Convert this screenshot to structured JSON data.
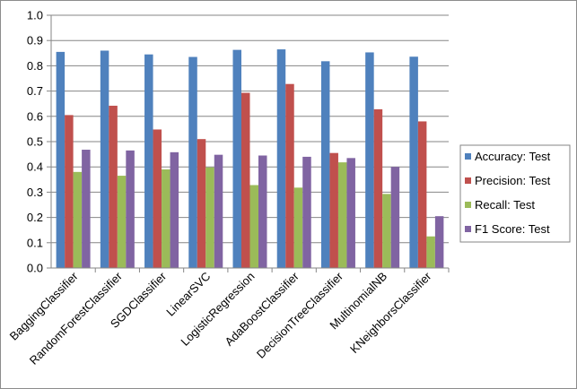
{
  "chart_data": {
    "type": "bar",
    "title": "",
    "xlabel": "",
    "ylabel": "",
    "ylim": [
      0,
      1
    ],
    "yticks": [
      "0.0",
      "0.1",
      "0.2",
      "0.3",
      "0.4",
      "0.5",
      "0.6",
      "0.7",
      "0.8",
      "0.9",
      "1.0"
    ],
    "grid": true,
    "legend_position": "right",
    "categories": [
      "BaggingClassifier",
      "RandomForestClassifier",
      "SGDClassifier",
      "LinearSVC",
      "LogisticRegression",
      "AdaBoostClassifier",
      "DecisionTreeClassifier",
      "MultinomialNB",
      "KNeighborsClassifier"
    ],
    "series": [
      {
        "name": "Accuracy: Test",
        "color": "#4f81bd",
        "values": [
          0.855,
          0.86,
          0.845,
          0.835,
          0.863,
          0.865,
          0.818,
          0.853,
          0.836
        ]
      },
      {
        "name": "Precision: Test",
        "color": "#c0504d",
        "values": [
          0.605,
          0.642,
          0.548,
          0.51,
          0.693,
          0.728,
          0.455,
          0.628,
          0.58
        ]
      },
      {
        "name": "Recall: Test",
        "color": "#9bbb59",
        "values": [
          0.38,
          0.365,
          0.39,
          0.398,
          0.328,
          0.318,
          0.418,
          0.293,
          0.125
        ]
      },
      {
        "name": "F1 Score: Test",
        "color": "#8064a2",
        "values": [
          0.468,
          0.465,
          0.458,
          0.448,
          0.445,
          0.44,
          0.435,
          0.4,
          0.205
        ]
      }
    ]
  }
}
